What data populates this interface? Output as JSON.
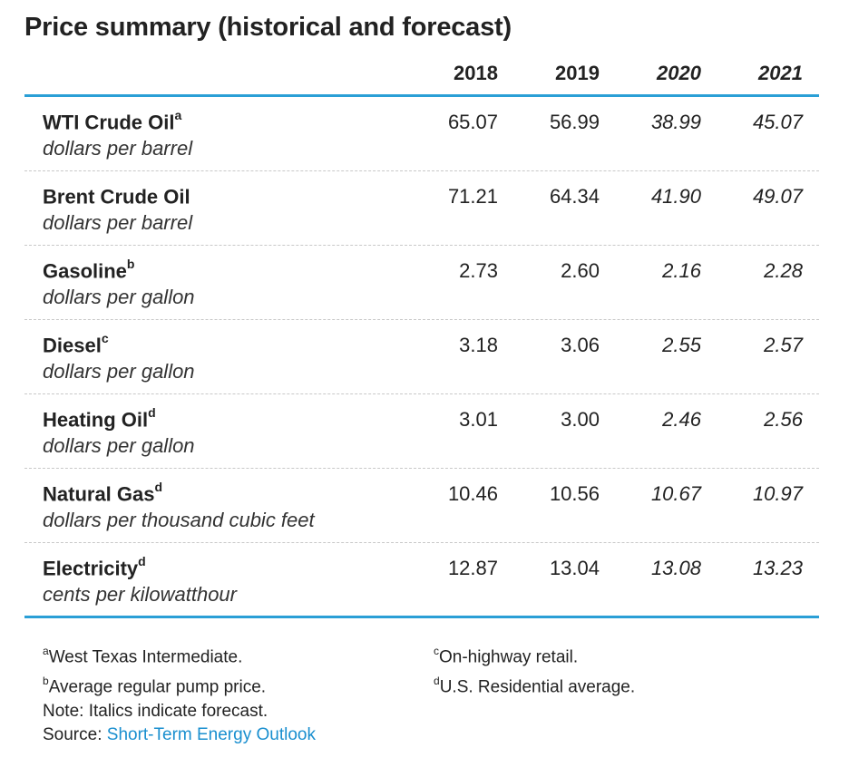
{
  "title": "Price summary (historical and forecast)",
  "years": [
    {
      "label": "2018",
      "forecast": false
    },
    {
      "label": "2019",
      "forecast": false
    },
    {
      "label": "2020",
      "forecast": true
    },
    {
      "label": "2021",
      "forecast": true
    }
  ],
  "rows": [
    {
      "name": "WTI Crude Oil",
      "sup": "a",
      "unit": "dollars per barrel",
      "values": [
        "65.07",
        "56.99",
        "38.99",
        "45.07"
      ]
    },
    {
      "name": "Brent Crude Oil",
      "sup": "",
      "unit": "dollars per barrel",
      "values": [
        "71.21",
        "64.34",
        "41.90",
        "49.07"
      ]
    },
    {
      "name": "Gasoline",
      "sup": "b",
      "unit": "dollars per gallon",
      "values": [
        "2.73",
        "2.60",
        "2.16",
        "2.28"
      ]
    },
    {
      "name": "Diesel",
      "sup": "c",
      "unit": "dollars per gallon",
      "values": [
        "3.18",
        "3.06",
        "2.55",
        "2.57"
      ]
    },
    {
      "name": "Heating Oil",
      "sup": "d",
      "unit": "dollars per gallon",
      "values": [
        "3.01",
        "3.00",
        "2.46",
        "2.56"
      ]
    },
    {
      "name": "Natural Gas",
      "sup": "d",
      "unit": "dollars per thousand cubic feet",
      "values": [
        "10.46",
        "10.56",
        "10.67",
        "10.97"
      ]
    },
    {
      "name": "Electricity",
      "sup": "d",
      "unit": "cents per kilowatthour",
      "values": [
        "12.87",
        "13.04",
        "13.08",
        "13.23"
      ]
    }
  ],
  "notes": {
    "a_mark": "a",
    "a_text": "West Texas Intermediate.",
    "b_mark": "b",
    "b_text": "Average regular pump price.",
    "note": "Note: Italics indicate forecast.",
    "source_label": "Source: ",
    "source_link": "Short-Term Energy Outlook",
    "c_mark": "c",
    "c_text": "On-highway retail.",
    "d_mark": "d",
    "d_text": "U.S. Residential average."
  },
  "colors": {
    "accent_rule": "#2a9fd6",
    "link": "#1a8fcf"
  }
}
